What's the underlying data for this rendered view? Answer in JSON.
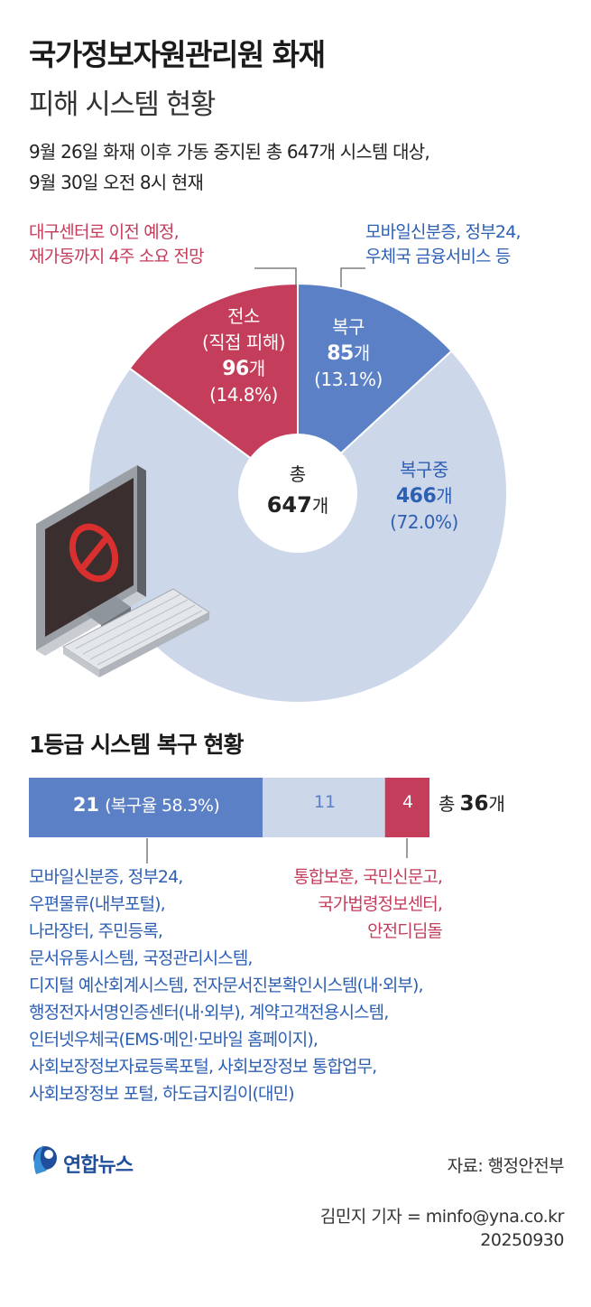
{
  "header": {
    "title": "국가정보자원관리원 화재",
    "subtitle": "피해 시스템 현황",
    "note_line1": "9월 26일 화재 이후 가동 중지된 총 647개 시스템 대상,",
    "note_line2": "9월 30일 오전 8시 현재"
  },
  "colors": {
    "recovered": "#5b80c6",
    "recovering": "#cdd7ea",
    "relocation": "#c43d5b",
    "recovered_text": "#2d5fb3",
    "relocation_text": "#c43d5b"
  },
  "callouts": {
    "relocation_line1": "대구센터로 이전 예정,",
    "relocation_line2": "재가동까지 4주 소요 전망",
    "recovered_line1": "모바일신분증, 정부24,",
    "recovered_line2": "우체국 금융서비스 등"
  },
  "pie_labels": {
    "relocation": {
      "name": "전소",
      "sub": "(직접 피해)",
      "count": "96",
      "unit": "개",
      "pct": "(14.8%)"
    },
    "recovered": {
      "name": "복구",
      "count": "85",
      "unit": "개",
      "pct": "(13.1%)"
    },
    "recovering": {
      "name": "복구중",
      "count": "466",
      "unit": "개",
      "pct": "(72.0%)"
    },
    "center_top": "총",
    "center_count": "647",
    "center_unit": "개"
  },
  "section2": {
    "title": "1등급 시스템 복구 현황",
    "bar_recovered_count": "21",
    "bar_recovered_note": "(복구율 58.3%)",
    "bar_recovering": "11",
    "bar_relocation": "4",
    "total_prefix": "총",
    "total_count": "36",
    "total_unit": "개",
    "recovered_list": [
      "모바일신분증, 정부24,",
      "우편물류(내부포털),",
      "나라장터, 주민등록,",
      "문서유통시스템, 국정관리시스템,",
      "디지털 예산회계시스템, 전자문서진본확인시스템(내·외부),",
      "행정전자서명인증센터(내·외부), 계약고객전용시스템,",
      "인터넷우체국(EMS·메인·모바일 홈페이지),",
      "사회보장정보자료등록포털, 사회보장정보 통합업무,",
      "사회보장정보 포털, 하도급지킴이(대민)"
    ],
    "relocation_list": [
      "통합보훈, 국민신문고,",
      "국가법령정보센터,",
      "안전디딤돌"
    ]
  },
  "footer": {
    "logo": "연합뉴스",
    "source": "자료: 행정안전부",
    "credit_line1": "김민지 기자 = minfo@yna.co.kr",
    "credit_line2": "20250930"
  },
  "chart_data": [
    {
      "type": "pie",
      "title": "피해 시스템 현황",
      "total": 647,
      "categories": [
        "복구",
        "복구중",
        "전소"
      ],
      "values": [
        85,
        466,
        96
      ],
      "percent": [
        13.1,
        72.0,
        14.8
      ]
    },
    {
      "type": "bar",
      "title": "1등급 시스템 복구 현황",
      "total": 36,
      "categories": [
        "복구",
        "복구중",
        "전소"
      ],
      "values": [
        21,
        11,
        4
      ],
      "recovery_rate": 58.3
    }
  ]
}
